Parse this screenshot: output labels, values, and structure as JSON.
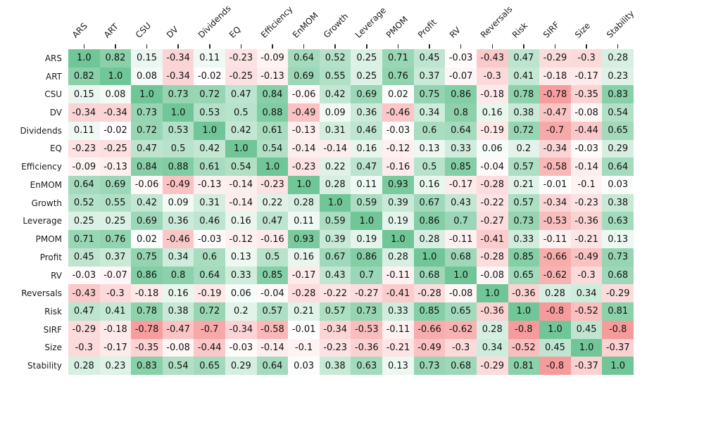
{
  "chart_data": {
    "type": "heatmap",
    "title": "",
    "categories": [
      "ARS",
      "ART",
      "CSU",
      "DV",
      "Dividends",
      "EQ",
      "Efficiency",
      "EnMOM",
      "Growth",
      "Leverage",
      "PMOM",
      "Profit",
      "RV",
      "Reversals",
      "Risk",
      "SIRF",
      "Size",
      "Stability"
    ],
    "matrix": [
      [
        1.0,
        0.82,
        0.15,
        -0.34,
        0.11,
        -0.23,
        -0.09,
        0.64,
        0.52,
        0.25,
        0.71,
        0.45,
        -0.03,
        -0.43,
        0.47,
        -0.29,
        -0.3,
        0.28
      ],
      [
        0.82,
        1.0,
        0.08,
        -0.34,
        -0.02,
        -0.25,
        -0.13,
        0.69,
        0.55,
        0.25,
        0.76,
        0.37,
        -0.07,
        -0.3,
        0.41,
        -0.18,
        -0.17,
        0.23
      ],
      [
        0.15,
        0.08,
        1.0,
        0.73,
        0.72,
        0.47,
        0.84,
        -0.06,
        0.42,
        0.69,
        0.02,
        0.75,
        0.86,
        -0.18,
        0.78,
        -0.78,
        -0.35,
        0.83
      ],
      [
        -0.34,
        -0.34,
        0.73,
        1.0,
        0.53,
        0.5,
        0.88,
        -0.49,
        0.09,
        0.36,
        -0.46,
        0.34,
        0.8,
        0.16,
        0.38,
        -0.47,
        -0.08,
        0.54
      ],
      [
        0.11,
        -0.02,
        0.72,
        0.53,
        1.0,
        0.42,
        0.61,
        -0.13,
        0.31,
        0.46,
        -0.03,
        0.6,
        0.64,
        -0.19,
        0.72,
        -0.7,
        -0.44,
        0.65
      ],
      [
        -0.23,
        -0.25,
        0.47,
        0.5,
        0.42,
        1.0,
        0.54,
        -0.14,
        -0.14,
        0.16,
        -0.12,
        0.13,
        0.33,
        0.06,
        0.2,
        -0.34,
        -0.03,
        0.29
      ],
      [
        -0.09,
        -0.13,
        0.84,
        0.88,
        0.61,
        0.54,
        1.0,
        -0.23,
        0.22,
        0.47,
        -0.16,
        0.5,
        0.85,
        -0.04,
        0.57,
        -0.58,
        -0.14,
        0.64
      ],
      [
        0.64,
        0.69,
        -0.06,
        -0.49,
        -0.13,
        -0.14,
        -0.23,
        1.0,
        0.28,
        0.11,
        0.93,
        0.16,
        -0.17,
        -0.28,
        0.21,
        -0.01,
        -0.1,
        0.03
      ],
      [
        0.52,
        0.55,
        0.42,
        0.09,
        0.31,
        -0.14,
        0.22,
        0.28,
        1.0,
        0.59,
        0.39,
        0.67,
        0.43,
        -0.22,
        0.57,
        -0.34,
        -0.23,
        0.38
      ],
      [
        0.25,
        0.25,
        0.69,
        0.36,
        0.46,
        0.16,
        0.47,
        0.11,
        0.59,
        1.0,
        0.19,
        0.86,
        0.7,
        -0.27,
        0.73,
        -0.53,
        -0.36,
        0.63
      ],
      [
        0.71,
        0.76,
        0.02,
        -0.46,
        -0.03,
        -0.12,
        -0.16,
        0.93,
        0.39,
        0.19,
        1.0,
        0.28,
        -0.11,
        -0.41,
        0.33,
        -0.11,
        -0.21,
        0.13
      ],
      [
        0.45,
        0.37,
        0.75,
        0.34,
        0.6,
        0.13,
        0.5,
        0.16,
        0.67,
        0.86,
        0.28,
        1.0,
        0.68,
        -0.28,
        0.85,
        -0.66,
        -0.49,
        0.73
      ],
      [
        -0.03,
        -0.07,
        0.86,
        0.8,
        0.64,
        0.33,
        0.85,
        -0.17,
        0.43,
        0.7,
        -0.11,
        0.68,
        1.0,
        -0.08,
        0.65,
        -0.62,
        -0.3,
        0.68
      ],
      [
        -0.43,
        -0.3,
        -0.18,
        0.16,
        -0.19,
        0.06,
        -0.04,
        -0.28,
        -0.22,
        -0.27,
        -0.41,
        -0.28,
        -0.08,
        1.0,
        -0.36,
        0.28,
        0.34,
        -0.29
      ],
      [
        0.47,
        0.41,
        0.78,
        0.38,
        0.72,
        0.2,
        0.57,
        0.21,
        0.57,
        0.73,
        0.33,
        0.85,
        0.65,
        -0.36,
        1.0,
        -0.8,
        -0.52,
        0.81
      ],
      [
        -0.29,
        -0.18,
        -0.78,
        -0.47,
        -0.7,
        -0.34,
        -0.58,
        -0.01,
        -0.34,
        -0.53,
        -0.11,
        -0.66,
        -0.62,
        0.28,
        -0.8,
        1.0,
        0.45,
        -0.8
      ],
      [
        -0.3,
        -0.17,
        -0.35,
        -0.08,
        -0.44,
        -0.03,
        -0.14,
        -0.1,
        -0.23,
        -0.36,
        -0.21,
        -0.49,
        -0.3,
        0.34,
        -0.52,
        0.45,
        1.0,
        -0.37
      ],
      [
        0.28,
        0.23,
        0.83,
        0.54,
        0.65,
        0.29,
        0.64,
        0.03,
        0.38,
        0.63,
        0.13,
        0.73,
        0.68,
        -0.29,
        0.81,
        -0.8,
        -0.37,
        1.0
      ]
    ],
    "value_range": [
      -1,
      1
    ],
    "annotated": true,
    "colormap": {
      "negative_end": "#f48282",
      "midpoint": "#ffffff",
      "positive_end": "#70c696"
    },
    "legend_position": "none",
    "grid": false,
    "xlabel": "",
    "ylabel": ""
  }
}
